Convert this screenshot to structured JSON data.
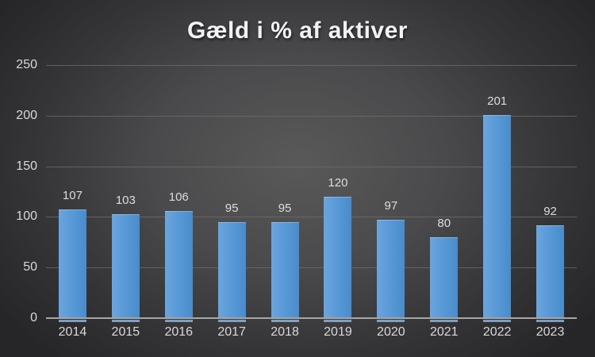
{
  "chart_data": {
    "type": "bar",
    "title": "Gæld i % af aktiver",
    "categories": [
      "2014",
      "2015",
      "2016",
      "2017",
      "2018",
      "2019",
      "2020",
      "2021",
      "2022",
      "2023"
    ],
    "values": [
      107,
      103,
      106,
      95,
      95,
      120,
      97,
      80,
      201,
      92
    ],
    "xlabel": "",
    "ylabel": "",
    "ylim": [
      0,
      250
    ],
    "yticks": [
      0,
      50,
      100,
      150,
      200,
      250
    ],
    "grid": "horizontal",
    "legend": "none",
    "data_labels": true
  },
  "colors": {
    "background_center": "#595959",
    "background_edge": "#262628",
    "bar_fill_light": "#6ba5de",
    "bar_fill": "#5697d6",
    "bar_fill_dark": "#4a8bca",
    "bar_foot": "#93b9e2",
    "gridline": "#6e6e6e",
    "axis_line": "#a6a6a6",
    "title_text": "#f2f2f2",
    "label_text": "#d9d9d9",
    "value_label_text": "#dcdcdc"
  }
}
